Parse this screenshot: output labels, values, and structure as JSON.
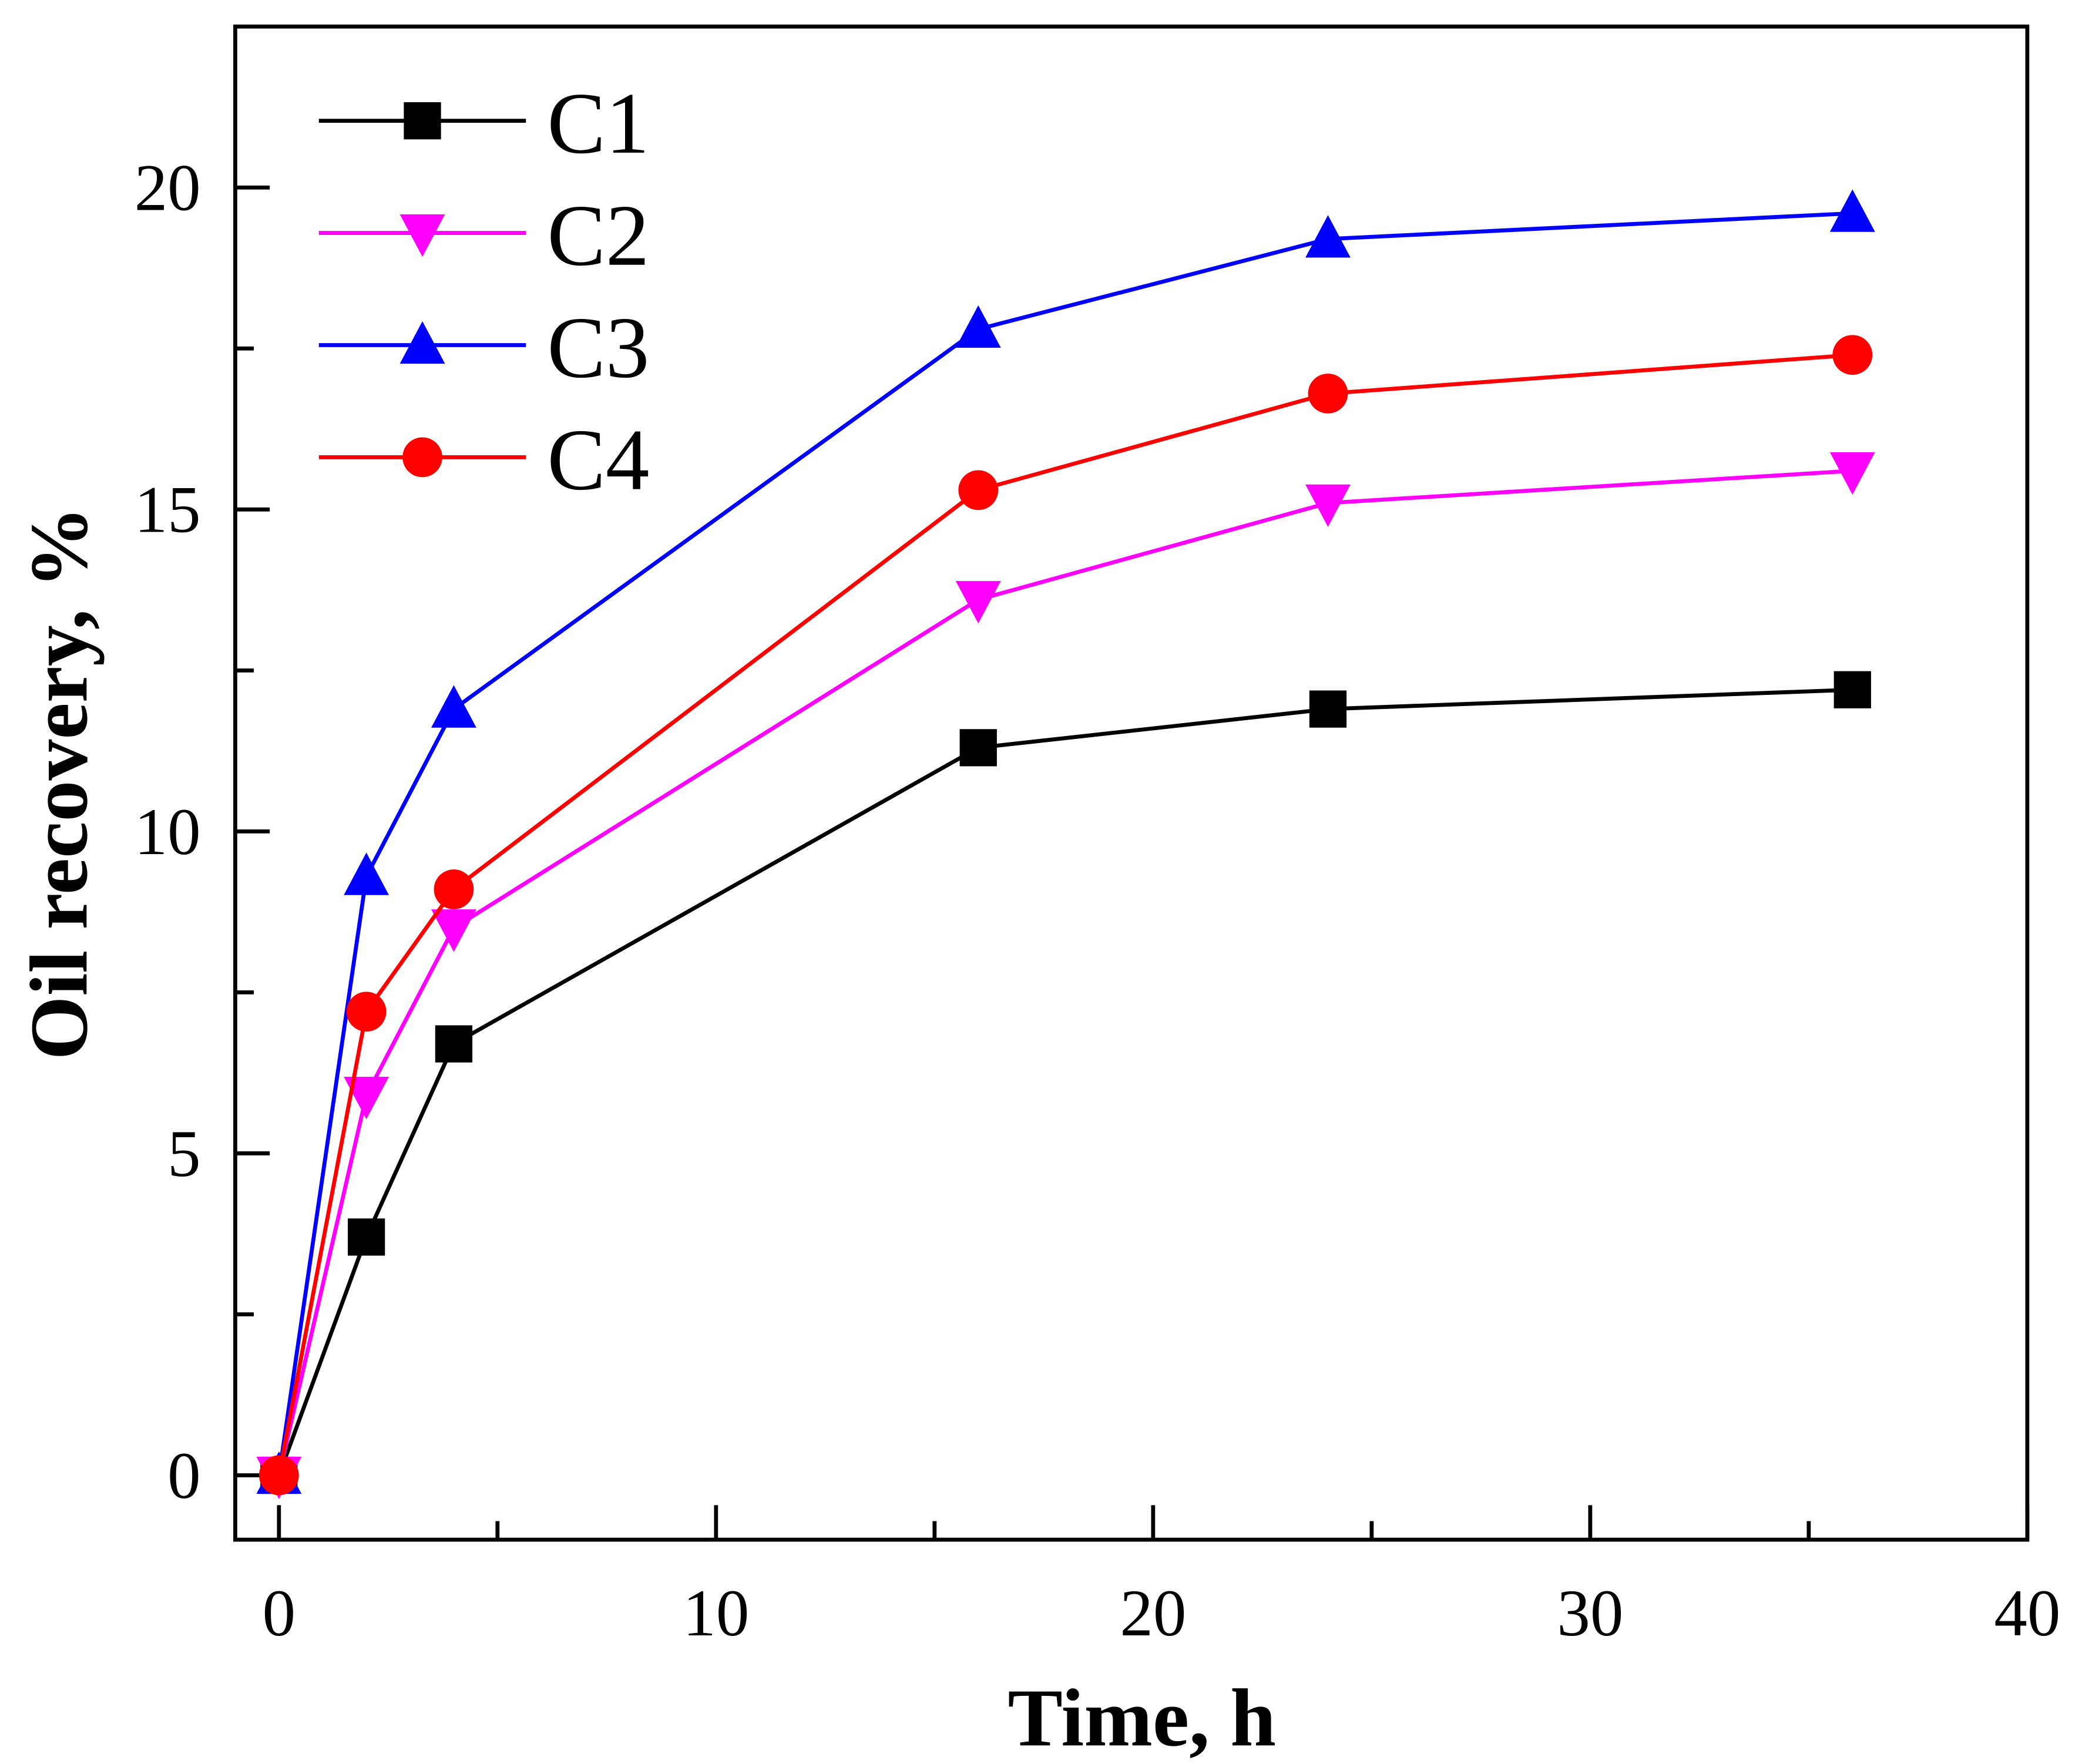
{
  "chart_data": {
    "type": "line",
    "title": "",
    "xlabel": "Time, h",
    "ylabel": "Oil recovery, %",
    "xlim": [
      -1,
      40
    ],
    "ylim": [
      -1,
      22.5
    ],
    "xticks": [
      0,
      10,
      20,
      30,
      40
    ],
    "xminor": [
      5,
      15,
      25,
      35
    ],
    "yticks": [
      0,
      5,
      10,
      15,
      20
    ],
    "yminor": [
      2.5,
      7.5,
      12.5,
      17.5
    ],
    "xtick_labels": [
      "0",
      "10",
      "20",
      "30",
      "40"
    ],
    "ytick_labels": [
      "0",
      "5",
      "10",
      "15",
      "20"
    ],
    "grid": false,
    "legend_position": "top-left",
    "x": [
      0,
      2,
      4,
      16,
      24,
      36
    ],
    "series": [
      {
        "name": "C1",
        "color": "#000000",
        "marker": "square",
        "values": [
          0,
          3.7,
          6.7,
          11.3,
          11.9,
          12.2
        ]
      },
      {
        "name": "C2",
        "color": "#ff00ff",
        "marker": "triangle-down",
        "values": [
          0,
          5.9,
          8.5,
          13.6,
          15.1,
          15.6
        ]
      },
      {
        "name": "C3",
        "color": "#0000ff",
        "marker": "triangle-up",
        "values": [
          0,
          9.3,
          11.9,
          17.8,
          19.2,
          19.6
        ]
      },
      {
        "name": "C4",
        "color": "#ff0000",
        "marker": "circle",
        "values": [
          0,
          7.2,
          9.1,
          15.3,
          16.8,
          17.4
        ]
      }
    ]
  }
}
